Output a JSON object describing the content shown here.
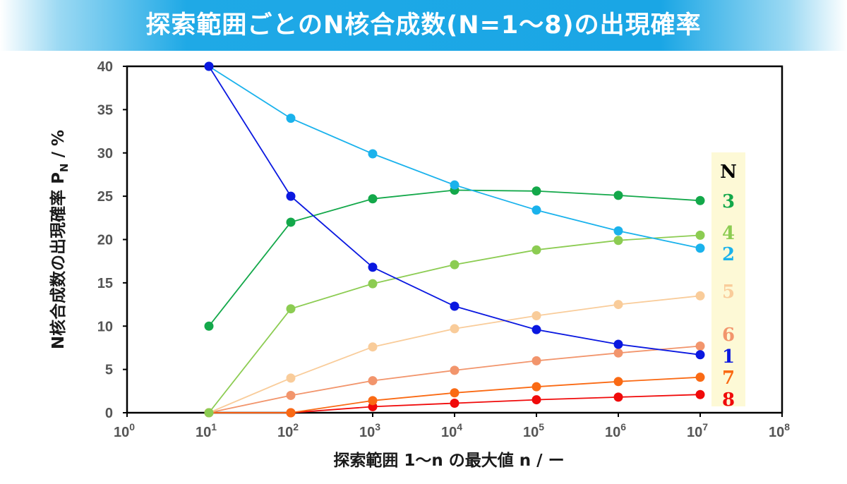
{
  "title": "探索範囲ごとのN核合成数(N=1〜8)の出現確率",
  "chart_data": {
    "type": "line",
    "xlabel": "探索範囲 1〜n の最大値 n / ー",
    "ylabel": "N核合成数の出現確率 P",
    "ylabel_sub": "N",
    "ylabel_unit": " / %",
    "x_scale": "log10",
    "xlim_exp": [
      0,
      8
    ],
    "x_ticks": [
      {
        "base": "10",
        "exp": "0"
      },
      {
        "base": "10",
        "exp": "1"
      },
      {
        "base": "10",
        "exp": "2"
      },
      {
        "base": "10",
        "exp": "3"
      },
      {
        "base": "10",
        "exp": "4"
      },
      {
        "base": "10",
        "exp": "5"
      },
      {
        "base": "10",
        "exp": "6"
      },
      {
        "base": "10",
        "exp": "7"
      },
      {
        "base": "10",
        "exp": "8"
      }
    ],
    "ylim": [
      0,
      40
    ],
    "y_ticks": [
      "0",
      "5",
      "10",
      "15",
      "20",
      "25",
      "30",
      "35",
      "40"
    ],
    "grid": false,
    "x_exp": [
      1,
      2,
      3,
      4,
      5,
      6,
      7
    ],
    "legend_title": "N",
    "legend_position": "right",
    "series": [
      {
        "name": "1",
        "color": "#0a18e0",
        "values": [
          40,
          25,
          16.8,
          12.3,
          9.6,
          7.9,
          6.7
        ]
      },
      {
        "name": "2",
        "color": "#1ab2ec",
        "values": [
          40,
          34,
          29.9,
          26.3,
          23.4,
          21,
          19
        ]
      },
      {
        "name": "3",
        "color": "#13a84a",
        "values": [
          10,
          22,
          24.7,
          25.7,
          25.6,
          25.1,
          24.5
        ]
      },
      {
        "name": "4",
        "color": "#8ccc52",
        "values": [
          0,
          12,
          14.9,
          17.1,
          18.8,
          19.9,
          20.5
        ]
      },
      {
        "name": "5",
        "color": "#f9cc9a",
        "values": [
          0,
          4,
          7.6,
          9.7,
          11.2,
          12.5,
          13.5
        ]
      },
      {
        "name": "6",
        "color": "#f2956c",
        "values": [
          0,
          2,
          3.7,
          4.9,
          6,
          6.9,
          7.7
        ]
      },
      {
        "name": "7",
        "color": "#fa6a14",
        "values": [
          0,
          0,
          1.4,
          2.3,
          3,
          3.6,
          4.1
        ]
      },
      {
        "name": "8",
        "color": "#f00a0a",
        "values": [
          0,
          0,
          0.7,
          1.1,
          1.5,
          1.8,
          2.1
        ]
      }
    ],
    "legend_order": [
      "3",
      "4",
      "2",
      "5",
      "6",
      "1",
      "7",
      "8"
    ],
    "legend_bg": "#fdf9d6"
  }
}
